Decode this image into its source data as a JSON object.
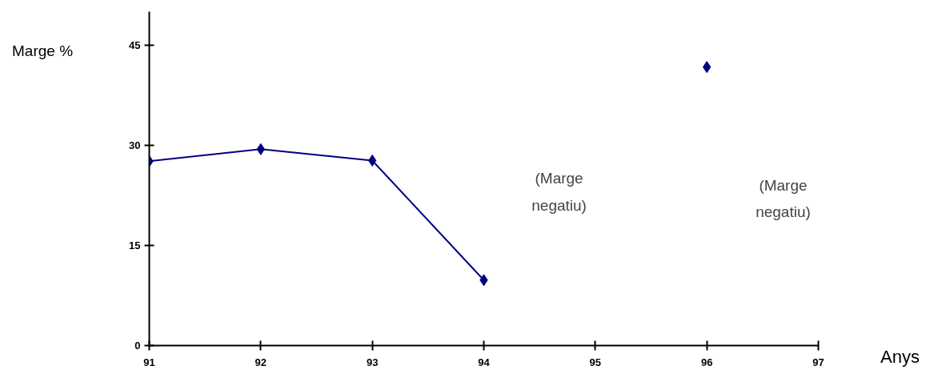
{
  "chart_data": {
    "type": "line",
    "xlabel": "Anys",
    "ylabel": "Marge %",
    "x": [
      91,
      92,
      93,
      94,
      95,
      96
    ],
    "series": [
      {
        "color": "#000080",
        "values": [
          27.6,
          29.4,
          27.7,
          9.8,
          null,
          41.7
        ]
      }
    ],
    "xlim": [
      91,
      97
    ],
    "xticks": [
      91,
      92,
      93,
      94,
      95,
      96,
      97
    ],
    "ylim": [
      0,
      50
    ],
    "yticks": [
      0,
      15,
      30,
      45
    ],
    "marker": "diamond",
    "line_style": "solid",
    "grid": false,
    "annotations": [
      "(Marge\nnegatiu)",
      "(Marge\nnegatiu)"
    ]
  }
}
